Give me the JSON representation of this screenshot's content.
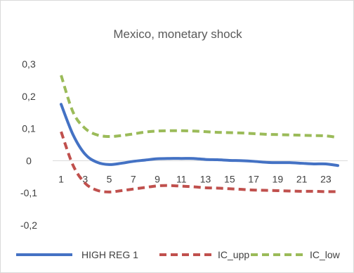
{
  "chart_data": {
    "type": "line",
    "title": "Mexico, monetary shock",
    "x": [
      1,
      2,
      3,
      4,
      5,
      6,
      7,
      8,
      9,
      10,
      11,
      12,
      13,
      14,
      15,
      16,
      17,
      18,
      19,
      20,
      21,
      22,
      23,
      24
    ],
    "x_tick_labels": [
      "1",
      "3",
      "5",
      "7",
      "9",
      "11",
      "13",
      "15",
      "17",
      "19",
      "21",
      "23"
    ],
    "y_tick_labels": [
      "0,3",
      "0,2",
      "0,1",
      "0",
      "-0,1",
      "-0,2"
    ],
    "ylim": [
      -0.2,
      0.3
    ],
    "grid": false,
    "legend_position": "bottom",
    "series": [
      {
        "name": "HIGH REG 1",
        "color": "#4472c4",
        "style": "solid",
        "values": [
          0.175,
          0.08,
          0.02,
          -0.005,
          -0.012,
          -0.008,
          -0.002,
          0.002,
          0.006,
          0.007,
          0.007,
          0.007,
          0.004,
          0.003,
          0.001,
          0.0,
          -0.002,
          -0.005,
          -0.006,
          -0.006,
          -0.008,
          -0.01,
          -0.01,
          -0.015
        ]
      },
      {
        "name": "IC_upp",
        "color": "#c0504d",
        "style": "dashed",
        "values": [
          0.09,
          -0.015,
          -0.07,
          -0.092,
          -0.097,
          -0.093,
          -0.088,
          -0.083,
          -0.078,
          -0.077,
          -0.079,
          -0.081,
          -0.084,
          -0.085,
          -0.087,
          -0.089,
          -0.091,
          -0.092,
          -0.093,
          -0.094,
          -0.095,
          -0.095,
          -0.096,
          -0.096
        ]
      },
      {
        "name": "IC_low",
        "color": "#9bbb59",
        "style": "dashed",
        "values": [
          0.265,
          0.15,
          0.1,
          0.08,
          0.075,
          0.078,
          0.083,
          0.089,
          0.092,
          0.093,
          0.093,
          0.092,
          0.09,
          0.088,
          0.087,
          0.086,
          0.084,
          0.082,
          0.081,
          0.08,
          0.079,
          0.078,
          0.077,
          0.072
        ]
      }
    ]
  }
}
